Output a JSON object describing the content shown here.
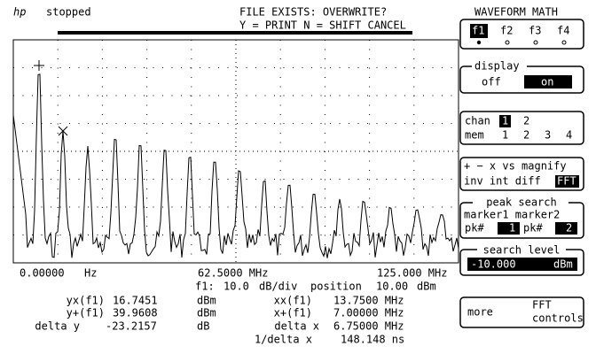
{
  "header": {
    "logo": "hp",
    "status": "stopped",
    "message": [
      "FILE EXISTS: OVERWRITE?",
      "Y = PRINT N = SHIFT CANCEL"
    ]
  },
  "axis": {
    "start": "0.00000",
    "start_unit": "Hz",
    "center": "62.5000 MHz",
    "end": "125.000 MHz"
  },
  "scale": {
    "func": "f1:",
    "per_div": "10.0",
    "per_div_unit": "dB/div",
    "position_label": "position",
    "position": "10.00",
    "position_unit": "dBm"
  },
  "measurements": {
    "yx": {
      "label": "yx(f1)",
      "value": "16.7451",
      "unit": "dBm"
    },
    "yplus": {
      "label": "y+(f1)",
      "value": "39.9608",
      "unit": "dBm"
    },
    "delta_y": {
      "label": "delta y",
      "value": "-23.2157",
      "unit": "dB"
    },
    "xx": {
      "label": "xx(f1)",
      "value": "13.7500 MHz"
    },
    "xplus": {
      "label": "x+(f1)",
      "value": "7.00000 MHz"
    },
    "delta_x": {
      "label": "delta x",
      "value": "6.75000 MHz"
    },
    "inv_delta_x": {
      "label": "1/delta x",
      "value": "148.148 ns"
    }
  },
  "menu": {
    "title": "WAVEFORM MATH",
    "functions": [
      "f1",
      "f2",
      "f3",
      "f4"
    ],
    "display": {
      "label": "display",
      "off": "off",
      "on": "on"
    },
    "source": {
      "chan": "chan",
      "chan_options": [
        "1",
        "2"
      ],
      "mem": "mem",
      "mem_options": [
        "1",
        "2",
        "3",
        "4"
      ]
    },
    "operators": {
      "row1": "+ − x vs magnify",
      "row2": "inv int diff",
      "selected": "FFT"
    },
    "peak_search": {
      "label": "peak search",
      "markers": "marker1 marker2",
      "pk1_label": "pk#",
      "pk1": "1",
      "pk2_label": "pk#",
      "pk2": "2"
    },
    "search_level": {
      "label": "search level",
      "value": "-10.000",
      "unit": "dBm"
    },
    "more": {
      "label": "more",
      "line1": "FFT",
      "line2": "controls"
    }
  }
}
